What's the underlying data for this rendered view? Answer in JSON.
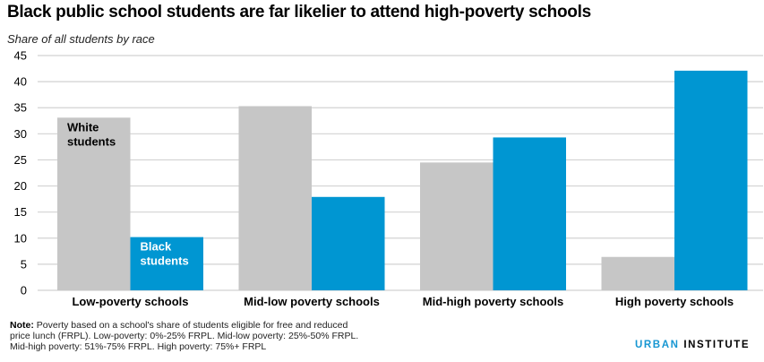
{
  "header": {
    "title": "Black public school students are far likelier to attend high-poverty schools",
    "subtitle": "Share of all students by race"
  },
  "note": {
    "label": "Note:",
    "text": "Poverty based on a school's share of students eligible  for free and reduced price lunch (FRPL). Low-poverty: 0%-25% FRPL. Mid-low poverty: 25%-50% FRPL. Mid-high poverty: 51%-75% FRPL. High poverty: 75%+ FRPL"
  },
  "logo": {
    "part1": "URBAN",
    "part2": "INSTITUTE"
  },
  "chart_data": {
    "type": "bar",
    "title": "Black public school students are far likelier to attend high-poverty schools",
    "subtitle": "Share of all students by race",
    "xlabel": "",
    "ylabel": "",
    "categories": [
      "Low-poverty schools",
      "Mid-low poverty schools",
      "Mid-high poverty schools",
      "High poverty schools"
    ],
    "series": [
      {
        "name": "White students",
        "color": "#c6c6c6",
        "label_color": "#000000",
        "values": [
          33.1,
          35.3,
          24.5,
          6.4
        ]
      },
      {
        "name": "Black students",
        "color": "#0096d2",
        "label_color": "#ffffff",
        "values": [
          10.2,
          17.9,
          29.3,
          42.1
        ]
      }
    ],
    "ylim": [
      0,
      45
    ],
    "yticks": [
      0,
      5,
      10,
      15,
      20,
      25,
      30,
      35,
      40,
      45
    ],
    "grid": true,
    "legend": "inline labels on first category bars",
    "inline_labels": [
      {
        "series": "White students",
        "lines": [
          "White",
          "students"
        ]
      },
      {
        "series": "Black students",
        "lines": [
          "Black",
          "students"
        ]
      }
    ]
  }
}
